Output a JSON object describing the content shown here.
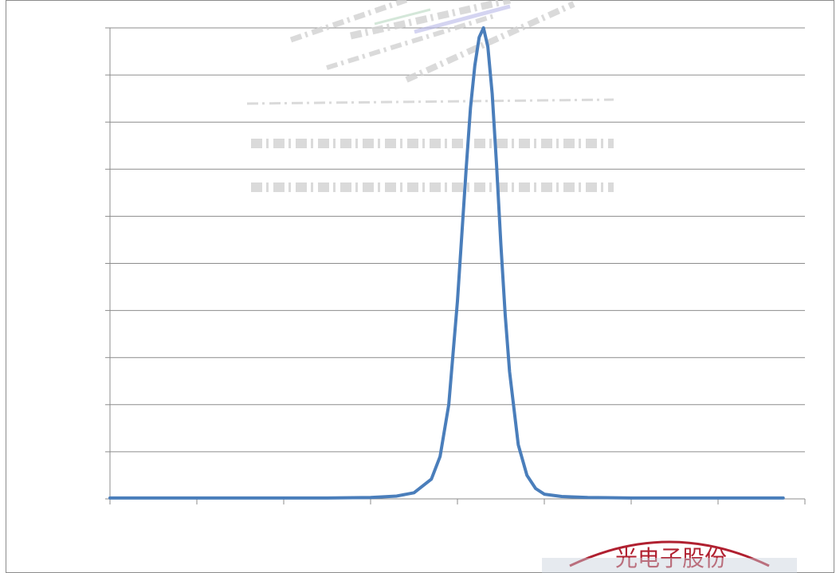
{
  "chart_data": {
    "type": "line",
    "title": "",
    "xlabel": "",
    "ylabel": "",
    "xlim": [
      0,
      8
    ],
    "ylim": [
      0,
      10
    ],
    "grid": true,
    "legend": "none",
    "x_tick_count": 9,
    "y_tick_count": 11,
    "series": [
      {
        "color": "#4a7ebb",
        "peak_x": 4.3,
        "x": [
          0,
          0.5,
          1.0,
          1.5,
          2.0,
          2.5,
          3.0,
          3.3,
          3.5,
          3.7,
          3.8,
          3.9,
          4.0,
          4.05,
          4.1,
          4.15,
          4.2,
          4.25,
          4.3,
          4.35,
          4.4,
          4.45,
          4.5,
          4.55,
          4.6,
          4.7,
          4.8,
          4.9,
          5.0,
          5.2,
          5.5,
          6.0,
          6.5,
          7.0,
          7.5,
          7.75
        ],
        "y": [
          0.02,
          0.02,
          0.02,
          0.02,
          0.02,
          0.02,
          0.03,
          0.06,
          0.13,
          0.42,
          0.9,
          2.0,
          4.2,
          5.6,
          7.0,
          8.3,
          9.2,
          9.8,
          10.0,
          9.6,
          8.6,
          7.1,
          5.4,
          3.9,
          2.7,
          1.15,
          0.5,
          0.22,
          0.1,
          0.05,
          0.03,
          0.02,
          0.02,
          0.02,
          0.02,
          0.02
        ]
      }
    ]
  },
  "stamp": {
    "text": "光电子股份",
    "color": "#b02030"
  }
}
